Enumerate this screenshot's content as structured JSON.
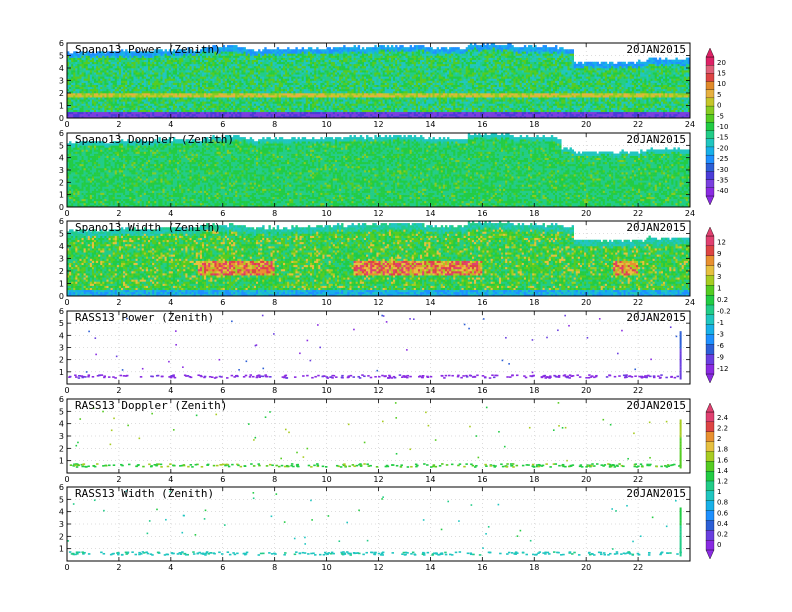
{
  "colors": {
    "power_scale": [
      "#8a2be2",
      "#7b3fe0",
      "#4b3cd8",
      "#2d5fd6",
      "#1e90ff",
      "#18b0e8",
      "#20c6c0",
      "#22cc88",
      "#22cc44",
      "#55cc22",
      "#88cc22",
      "#c6c62a",
      "#e6b040",
      "#e08a2a",
      "#dd4444",
      "#e0607a",
      "#dd2266"
    ],
    "width_scale": [
      "#8a2be2",
      "#6a3fe0",
      "#2d5fd6",
      "#1e90ff",
      "#18b0e8",
      "#20c6c0",
      "#22cc88",
      "#22cc44",
      "#55cc22",
      "#a8cc22",
      "#e6c040",
      "#e89030",
      "#dd4444",
      "#e04070"
    ],
    "rass_scale": [
      "#8a2be2",
      "#6a3fe0",
      "#2d5fd6",
      "#1e90ff",
      "#18b0e8",
      "#20c6c0",
      "#22cc88",
      "#22cc44",
      "#55cc22",
      "#a8cc22",
      "#e6c040",
      "#e89030",
      "#dd4444",
      "#e04070"
    ]
  },
  "chart_data": [
    {
      "type": "heatmap",
      "title": "Spano13 Power (Zenith)",
      "date": "20JAN2015",
      "xlim": [
        0,
        24
      ],
      "ylim": [
        0,
        6
      ],
      "xticks": [
        "0",
        "2",
        "4",
        "6",
        "8",
        "10",
        "12",
        "14",
        "16",
        "18",
        "20",
        "22",
        "24"
      ],
      "yticks": [
        "0",
        "1",
        "2",
        "3",
        "4",
        "5",
        "6"
      ],
      "top_km": [
        5.2,
        5.3,
        5.4,
        5.6,
        5.4,
        5.5,
        5.6,
        5.7,
        5.5,
        5.8,
        5.6,
        5.5,
        4.4,
        4.6
      ],
      "mode": "power"
    },
    {
      "type": "heatmap",
      "title": "Spano13 Doppler (Zenith)",
      "date": "20JAN2015",
      "xlim": [
        0,
        24
      ],
      "ylim": [
        0,
        6
      ],
      "xticks": [
        "0",
        "2",
        "4",
        "6",
        "8",
        "10",
        "12",
        "14",
        "16",
        "18",
        "20",
        "22",
        "24"
      ],
      "yticks": [
        "0",
        "1",
        "2",
        "3",
        "4",
        "5",
        "6"
      ],
      "top_km": [
        5.2,
        5.3,
        5.4,
        5.6,
        5.4,
        5.5,
        5.6,
        5.7,
        5.5,
        5.8,
        5.6,
        5.5,
        4.4,
        4.6
      ],
      "mode": "doppler"
    },
    {
      "type": "heatmap",
      "title": "Spano13 Width (Zenith)",
      "date": "20JAN2015",
      "xlim": [
        0,
        24
      ],
      "ylim": [
        0,
        6
      ],
      "xticks": [
        "0",
        "2",
        "4",
        "6",
        "8",
        "10",
        "12",
        "14",
        "16",
        "18",
        "20",
        "22",
        "24"
      ],
      "yticks": [
        "0",
        "1",
        "2",
        "3",
        "4",
        "5",
        "6"
      ],
      "top_km": [
        5.2,
        5.3,
        5.4,
        5.6,
        5.4,
        5.5,
        5.6,
        5.7,
        5.5,
        5.8,
        5.6,
        5.5,
        4.4,
        4.6
      ],
      "mode": "width"
    },
    {
      "type": "scatter",
      "title": "RASS13 Power (Zenith)",
      "date": "20JAN2015",
      "xlim": [
        0,
        24
      ],
      "ylim": [
        0,
        6
      ],
      "xticks": [
        "0",
        "2",
        "4",
        "6",
        "8",
        "10",
        "12",
        "14",
        "16",
        "18",
        "20",
        "22",
        ""
      ],
      "yticks": [
        "",
        "1",
        "2",
        "3",
        "4",
        "5",
        "6"
      ],
      "mode": "rass_power"
    },
    {
      "type": "scatter",
      "title": "RASS13 Doppler (Zenith)",
      "date": "20JAN2015",
      "xlim": [
        0,
        24
      ],
      "ylim": [
        0,
        6
      ],
      "xticks": [
        "0",
        "2",
        "4",
        "6",
        "8",
        "10",
        "12",
        "14",
        "16",
        "18",
        "20",
        "22",
        ""
      ],
      "yticks": [
        "",
        "1",
        "2",
        "3",
        "4",
        "5",
        "6"
      ],
      "mode": "rass_doppler"
    },
    {
      "type": "scatter",
      "title": "RASS13 Width (Zenith)",
      "date": "20JAN2015",
      "xlim": [
        0,
        24
      ],
      "ylim": [
        0,
        6
      ],
      "xticks": [
        "0",
        "2",
        "4",
        "6",
        "8",
        "10",
        "12",
        "14",
        "16",
        "18",
        "20",
        "22",
        ""
      ],
      "yticks": [
        "",
        "1",
        "2",
        "3",
        "4",
        "5",
        "6"
      ],
      "mode": "rass_width"
    }
  ],
  "colorbars": [
    {
      "labels": [
        "20",
        "15",
        "10",
        "5",
        "0",
        "-5",
        "-10",
        "-15",
        "-20",
        "-25",
        "-30",
        "-35",
        "-40"
      ],
      "scale": "power_scale"
    },
    {
      "labels": [
        "12",
        "9",
        "6",
        "3",
        "1",
        "0.2",
        "-0.2",
        "-1",
        "-3",
        "-6",
        "-9",
        "-12"
      ],
      "scale": "width_scale"
    },
    {
      "labels": [
        "2.4",
        "2.2",
        "2",
        "1.8",
        "1.6",
        "1.4",
        "1.2",
        "1",
        "0.8",
        "0.6",
        "0.4",
        "0.2",
        "0"
      ],
      "scale": "rass_scale"
    }
  ]
}
